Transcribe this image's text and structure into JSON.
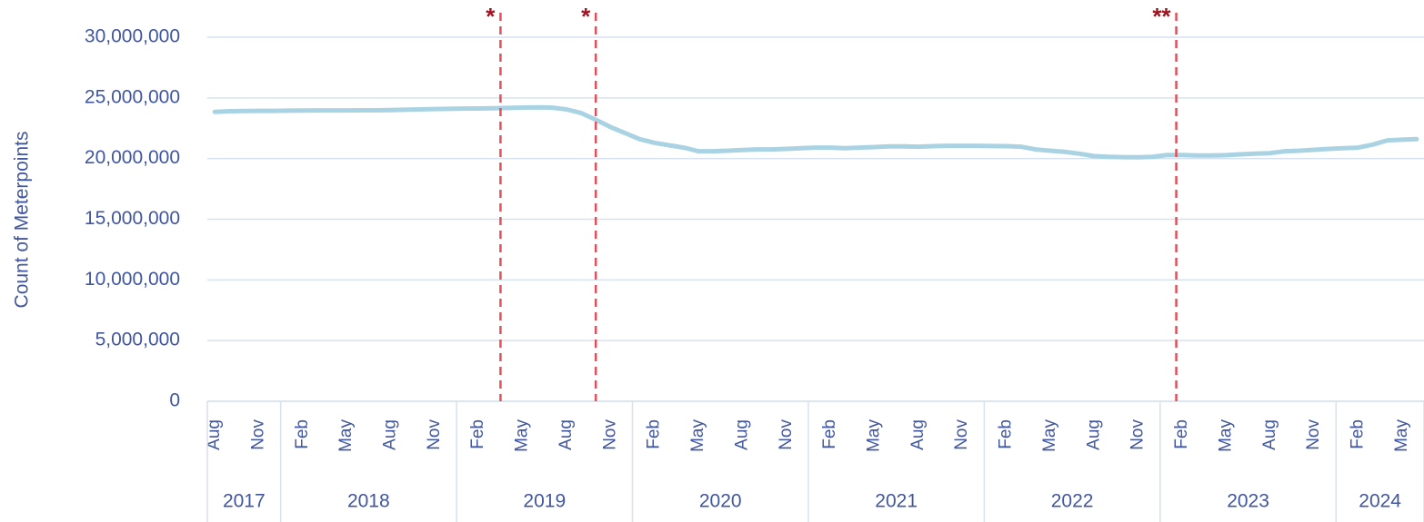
{
  "chart_data": {
    "type": "line",
    "y_axis_label": "Count of Meterpoints",
    "categories": [
      "Aug",
      null,
      null,
      "Nov",
      null,
      null,
      "Feb",
      null,
      null,
      "May",
      null,
      null,
      "Aug",
      null,
      null,
      "Nov",
      null,
      null,
      "Feb",
      null,
      null,
      "May",
      null,
      null,
      "Aug",
      null,
      null,
      "Nov",
      null,
      null,
      "Feb",
      null,
      null,
      "May",
      null,
      null,
      "Aug",
      null,
      null,
      "Nov",
      null,
      null,
      "Feb",
      null,
      null,
      "May",
      null,
      null,
      "Aug",
      null,
      null,
      "Nov",
      null,
      null,
      "Feb",
      null,
      null,
      "May",
      null,
      null,
      "Aug",
      null,
      null,
      "Nov",
      null,
      null,
      "Feb",
      null,
      null,
      "May",
      null,
      null,
      "Aug",
      null,
      null,
      "Nov",
      null,
      null,
      "Feb",
      null,
      null,
      "May",
      null
    ],
    "year_groups": [
      {
        "label": "2017",
        "months": 5
      },
      {
        "label": "2018",
        "months": 12
      },
      {
        "label": "2019",
        "months": 12
      },
      {
        "label": "2020",
        "months": 12
      },
      {
        "label": "2021",
        "months": 12
      },
      {
        "label": "2022",
        "months": 12
      },
      {
        "label": "2023",
        "months": 12
      },
      {
        "label": "2024",
        "months": 6
      }
    ],
    "series": [
      {
        "name": "Count of Meterpoints",
        "color": "#a9d3e3",
        "values": [
          23850000,
          23900000,
          23920000,
          23930000,
          23930000,
          23950000,
          23960000,
          23970000,
          23970000,
          23970000,
          23980000,
          23980000,
          24000000,
          24020000,
          24050000,
          24080000,
          24100000,
          24120000,
          24130000,
          24150000,
          24170000,
          24200000,
          24220000,
          24200000,
          24050000,
          23750000,
          23200000,
          22600000,
          22100000,
          21600000,
          21300000,
          21100000,
          20900000,
          20600000,
          20600000,
          20650000,
          20700000,
          20750000,
          20750000,
          20800000,
          20850000,
          20900000,
          20900000,
          20850000,
          20900000,
          20950000,
          21000000,
          21000000,
          20980000,
          21020000,
          21050000,
          21050000,
          21050000,
          21030000,
          21020000,
          20980000,
          20750000,
          20650000,
          20550000,
          20400000,
          20200000,
          20150000,
          20120000,
          20100000,
          20150000,
          20300000,
          20300000,
          20250000,
          20250000,
          20280000,
          20350000,
          20400000,
          20450000,
          20600000,
          20650000,
          20720000,
          20800000,
          20850000,
          20900000,
          21150000,
          21500000,
          21550000,
          21600000
        ]
      }
    ],
    "annotations": [
      {
        "label": "*",
        "position": 19.5
      },
      {
        "label": "*",
        "position": 26
      },
      {
        "label": "**",
        "position": 65.6
      }
    ],
    "annotation_color": "#e0505a",
    "ylim": [
      0,
      30000000
    ],
    "yticks": [
      0,
      {
        "value": 5000000,
        "label": "5,000,000"
      },
      {
        "value": 10000000,
        "label": "10,000,000"
      },
      {
        "value": 15000000,
        "label": "15,000,000"
      },
      {
        "value": 20000000,
        "label": "20,000,000"
      },
      {
        "value": 25000000,
        "label": "25,000,000"
      },
      {
        "value": 30000000,
        "label": "30,000,000"
      }
    ],
    "grid": true
  }
}
